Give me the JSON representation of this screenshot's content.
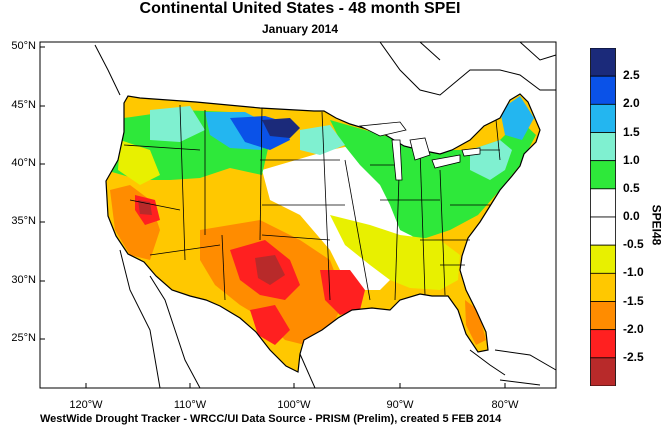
{
  "title": "Continental United States - 48 month SPEI",
  "subtitle": "January 2014",
  "footer": "WestWide Drought Tracker - WRCC/UI  Data Source - PRISM (Prelim), created  5 FEB 2014",
  "map": {
    "lat_labels": [
      "50°N",
      "45°N",
      "40°N",
      "35°N",
      "30°N",
      "25°N"
    ],
    "lon_labels": [
      "120°W",
      "110°W",
      "100°W",
      "90°W",
      "80°W"
    ]
  },
  "colorbar": {
    "title": "SPEI48",
    "labels": [
      "2.5",
      "2.0",
      "1.5",
      "1.0",
      "0.5",
      "0.0",
      "-0.5",
      "-1.0",
      "-1.5",
      "-2.0",
      "-2.5"
    ],
    "colors": [
      "#1b2a7a",
      "#0a52e8",
      "#23b6f0",
      "#7ff0d0",
      "#2ee83a",
      "#ffffff",
      "#ffffff",
      "#e8f000",
      "#ffc800",
      "#ff8c00",
      "#ff2020",
      "#b82a2a"
    ]
  }
}
